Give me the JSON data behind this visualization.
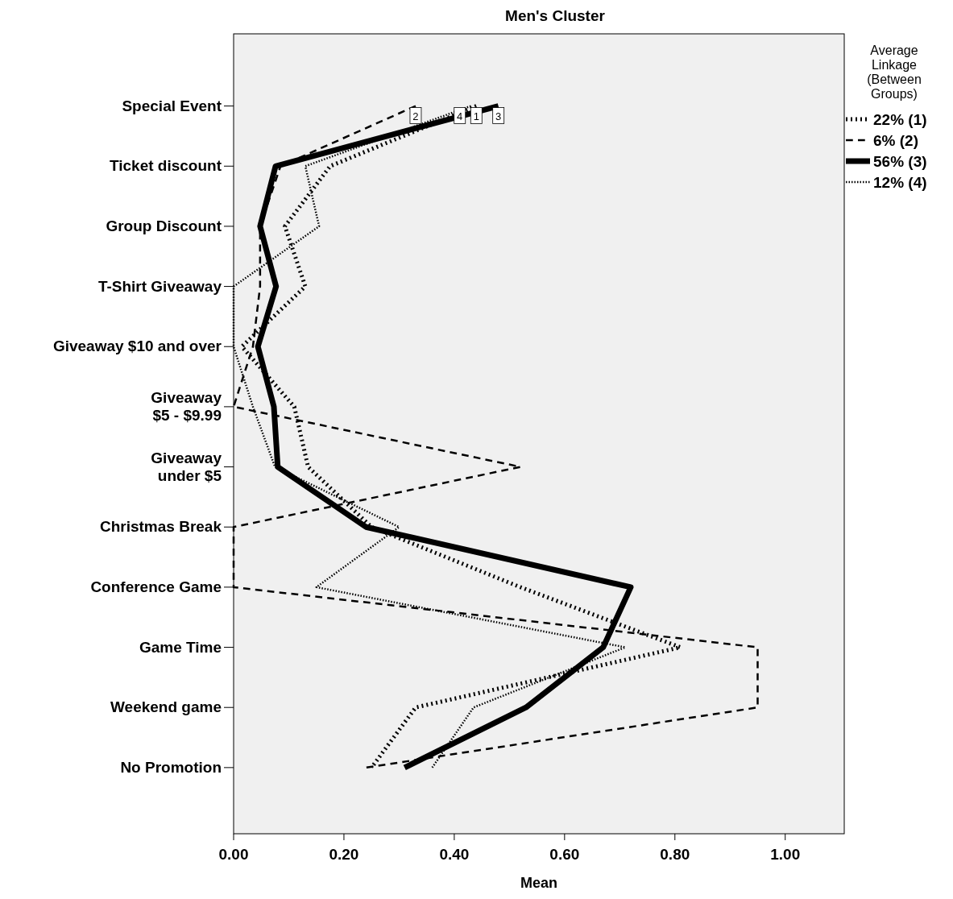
{
  "chart_data": {
    "type": "line",
    "title": "Men's Cluster",
    "xlabel": "Mean",
    "legend_title": "Average Linkage (Between Groups)",
    "orientation": "horizontal",
    "categories": [
      "Special Event",
      "Ticket discount",
      "Group Discount",
      "T-Shirt Giveaway",
      "Giveaway $10 and over",
      "Giveaway\n$5 - $9.99",
      "Giveaway\nunder $5",
      "Christmas Break",
      "Conference Game",
      "Game Time",
      "Weekend game",
      "No Promotion"
    ],
    "series": [
      {
        "name": "22% (1)",
        "color": "#000000",
        "line_style": "dotted",
        "values": [
          0.44,
          0.175,
          0.093,
          0.13,
          0.015,
          0.11,
          0.135,
          0.25,
          0.52,
          0.81,
          0.33,
          0.25
        ]
      },
      {
        "name": "6% (2)",
        "color": "#000000",
        "line_style": "dashed",
        "values": [
          0.33,
          0.085,
          0.048,
          0.048,
          0.035,
          0.0,
          0.52,
          0.0,
          0.0,
          0.95,
          0.95,
          0.24
        ]
      },
      {
        "name": "56% (3)",
        "color": "#000000",
        "line_style": "solid",
        "values": [
          0.48,
          0.076,
          0.048,
          0.077,
          0.044,
          0.073,
          0.08,
          0.24,
          0.72,
          0.67,
          0.53,
          0.31
        ]
      },
      {
        "name": "12% (4)",
        "color": "#000000",
        "line_style": "dotted",
        "values": [
          0.43,
          0.13,
          0.155,
          0.0,
          0.0,
          0.035,
          0.075,
          0.3,
          0.15,
          0.71,
          0.435,
          0.36
        ]
      }
    ],
    "annotations": [
      {
        "text": "2",
        "x": 0.33,
        "y": "Special Event"
      },
      {
        "text": "4",
        "x": 0.41,
        "y": "Special Event"
      },
      {
        "text": "1",
        "x": 0.44,
        "y": "Special Event"
      },
      {
        "text": "3",
        "x": 0.48,
        "y": "Special Event"
      }
    ],
    "xlim": [
      0,
      1.107
    ],
    "xticks": [
      {
        "value": 0,
        "label": "0.00"
      },
      {
        "value": 0.2,
        "label": "0.20"
      },
      {
        "value": 0.4,
        "label": "0.40"
      },
      {
        "value": 0.6,
        "label": "0.60"
      },
      {
        "value": 0.8,
        "label": "0.80"
      },
      {
        "value": 1,
        "label": "1.00"
      }
    ],
    "grid": false,
    "legend": "top right",
    "marker": "none"
  }
}
